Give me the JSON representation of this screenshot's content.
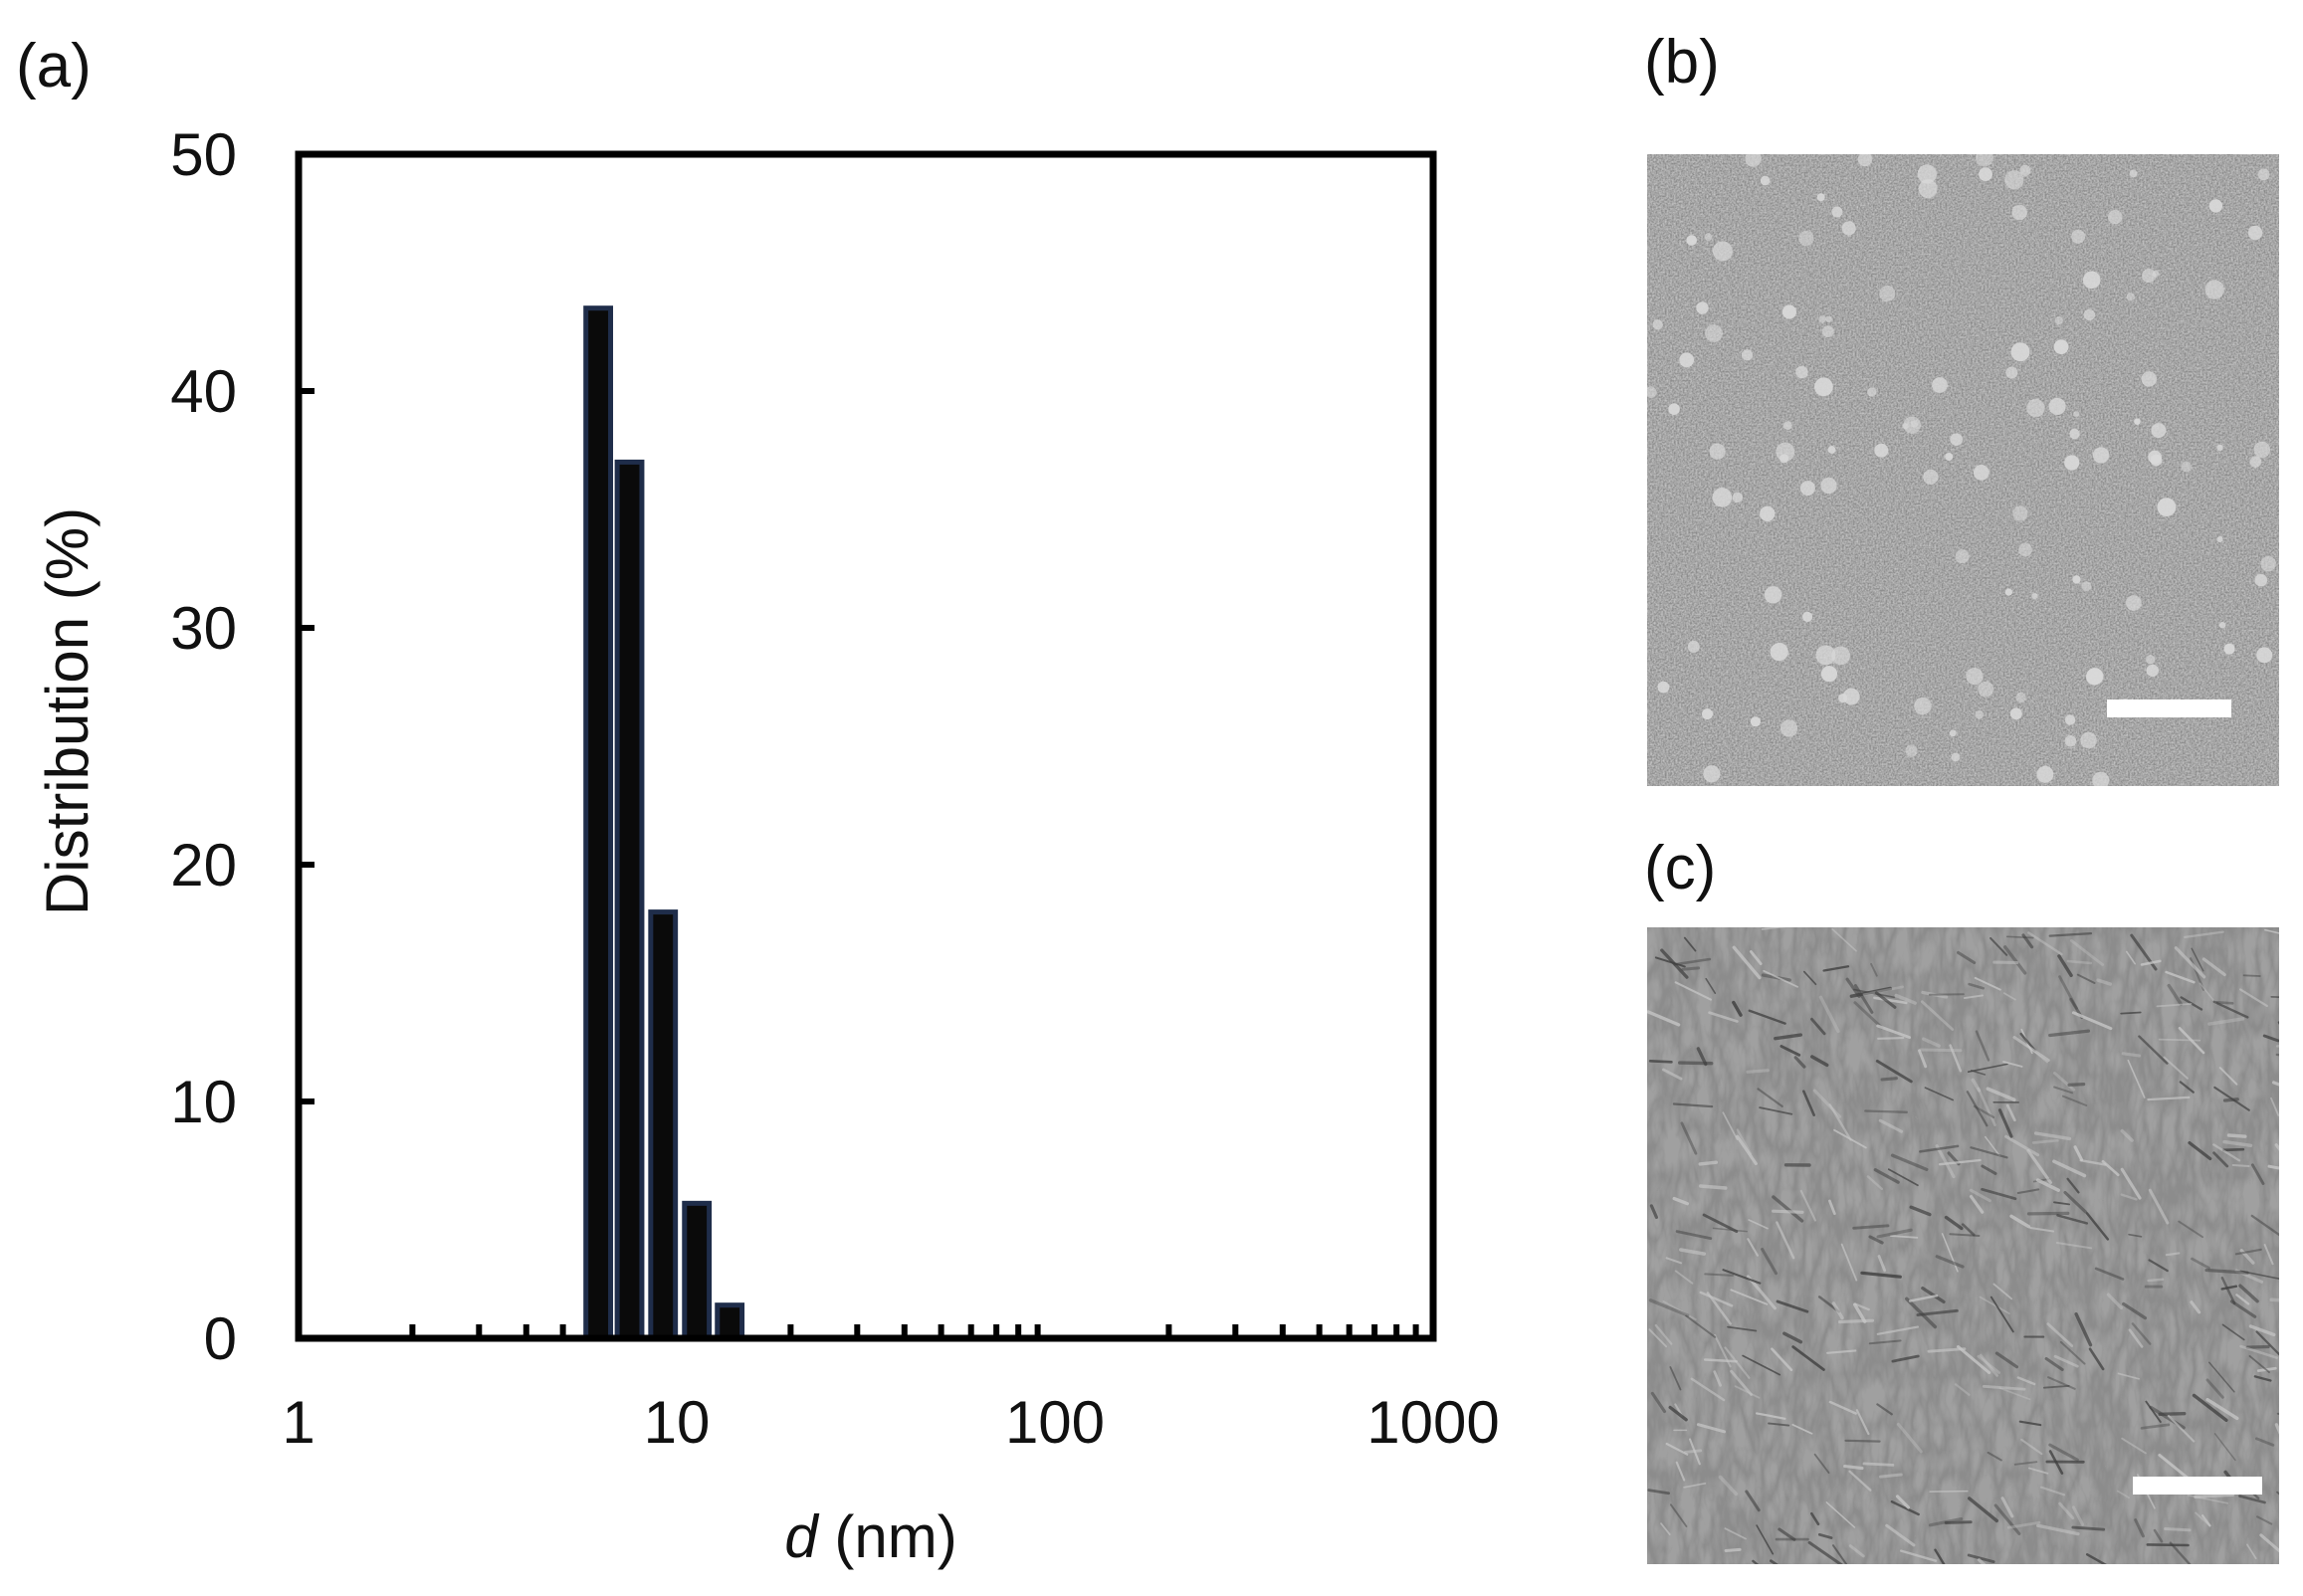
{
  "panels": {
    "a_label": "(a)",
    "b_label": "(b)",
    "c_label": "(c)"
  },
  "colors": {
    "bar_fill": "#0a0a0a",
    "bar_edge": "#1f2d4a",
    "axis": "#000000"
  },
  "chart_data": {
    "type": "bar",
    "x_scale": "log",
    "xlabel_var": "d",
    "xlabel_unit": " (nm)",
    "ylabel": "Distribution (%)",
    "xlim": [
      1,
      1000
    ],
    "ylim": [
      0,
      50
    ],
    "x_ticks": [
      "1",
      "10",
      "100",
      "1000"
    ],
    "y_ticks": [
      "0",
      "10",
      "20",
      "30",
      "40",
      "50"
    ],
    "grid": false,
    "series": [
      {
        "x": [
          6.2,
          7.5,
          9.2,
          11.3,
          13.8
        ],
        "values": [
          43.5,
          37,
          18,
          5.7,
          1.4
        ]
      }
    ]
  },
  "images": {
    "b": {
      "type": "micrograph",
      "scale_bar": true
    },
    "c": {
      "type": "micrograph",
      "scale_bar": true
    }
  }
}
